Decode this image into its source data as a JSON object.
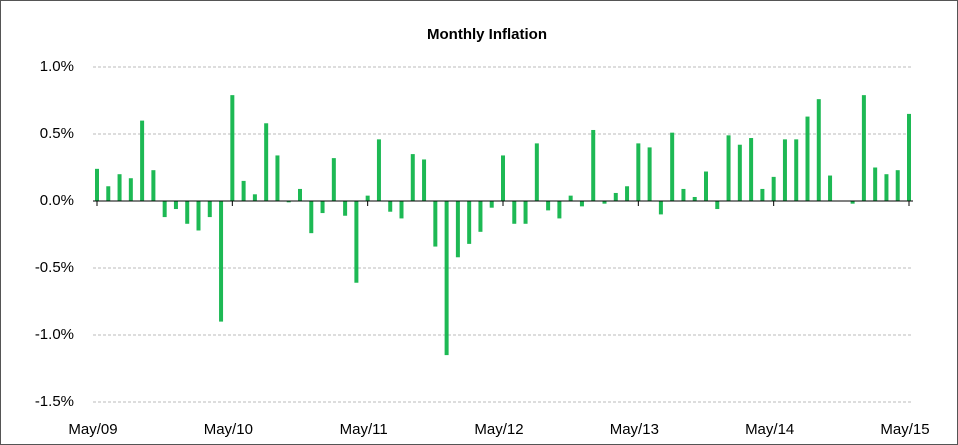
{
  "chart_data": {
    "type": "bar",
    "title": "Monthly Inflation",
    "categories": [
      "May/09",
      null,
      null,
      null,
      null,
      null,
      null,
      null,
      null,
      null,
      null,
      null,
      "May/10",
      null,
      null,
      null,
      null,
      null,
      null,
      null,
      null,
      null,
      null,
      null,
      "May/11",
      null,
      null,
      null,
      null,
      null,
      null,
      null,
      null,
      null,
      null,
      null,
      "May/12",
      null,
      null,
      null,
      null,
      null,
      null,
      null,
      null,
      null,
      null,
      null,
      "May/13",
      null,
      null,
      null,
      null,
      null,
      null,
      null,
      null,
      null,
      null,
      null,
      "May/14",
      null,
      null,
      null,
      null,
      null,
      null,
      null,
      null,
      null,
      null,
      null,
      "May/15"
    ],
    "values": [
      0.24,
      0.11,
      0.2,
      0.17,
      0.6,
      0.23,
      -0.12,
      -0.06,
      -0.17,
      -0.22,
      -0.12,
      -0.9,
      0.79,
      0.15,
      0.05,
      0.58,
      0.34,
      -0.01,
      0.09,
      -0.24,
      -0.09,
      0.32,
      -0.11,
      -0.61,
      0.04,
      0.46,
      -0.08,
      -0.13,
      0.35,
      0.31,
      -0.34,
      -1.15,
      -0.42,
      -0.32,
      -0.23,
      -0.05,
      0.34,
      -0.17,
      -0.17,
      0.43,
      -0.07,
      -0.13,
      0.04,
      -0.04,
      0.53,
      -0.02,
      0.06,
      0.11,
      0.43,
      0.4,
      -0.1,
      0.51,
      0.09,
      0.03,
      0.22,
      -0.06,
      0.49,
      0.42,
      0.47,
      0.09,
      0.18,
      0.46,
      0.46,
      0.63,
      0.76,
      0.19,
      0.0,
      -0.02,
      0.79,
      0.25,
      0.2,
      0.23,
      0.65
    ],
    "color": "#1db954",
    "ylim": [
      -1.5,
      1.0
    ],
    "yticks": [
      {
        "value": -1.5,
        "label": "-1.5%"
      },
      {
        "value": -1.0,
        "label": "-1.0%"
      },
      {
        "value": -0.5,
        "label": "-0.5%"
      },
      {
        "value": 0,
        "label": "0.0%"
      },
      {
        "value": 0.5,
        "label": "0.5%"
      },
      {
        "value": 1.0,
        "label": "1.0%"
      }
    ],
    "grid": true
  }
}
